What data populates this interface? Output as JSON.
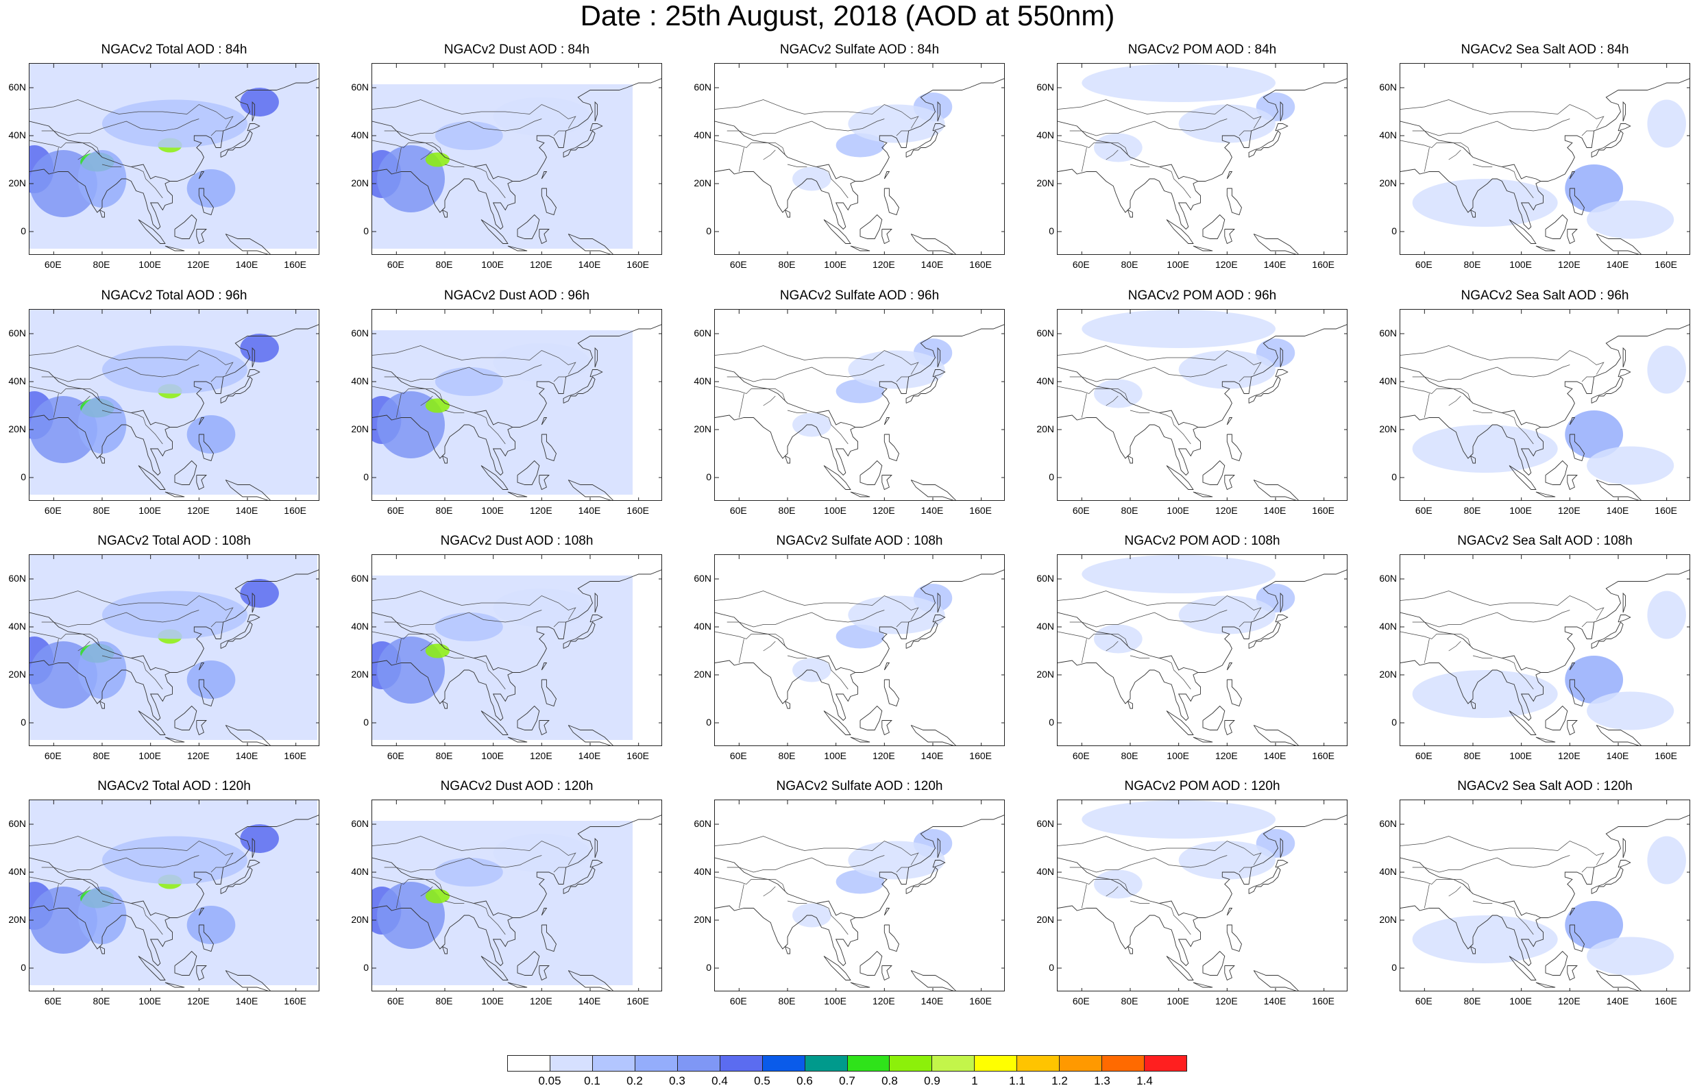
{
  "figure_title": "Date : 25th August, 2018 (AOD at 550nm)",
  "lat_ticks": [
    "60N",
    "40N",
    "20N",
    "0"
  ],
  "lon_ticks": [
    "60E",
    "80E",
    "100E",
    "120E",
    "140E",
    "160E"
  ],
  "panel_rows": [
    [
      "NGACv2 Total AOD : 84h",
      "NGACv2 Dust AOD : 84h",
      "NGACv2 Sulfate AOD : 84h",
      "NGACv2 POM AOD : 84h",
      "NGACv2 Sea Salt AOD : 84h"
    ],
    [
      "NGACv2 Total AOD : 96h",
      "NGACv2 Dust AOD : 96h",
      "NGACv2 Sulfate AOD : 96h",
      "NGACv2 POM AOD : 96h",
      "NGACv2 Sea Salt AOD : 96h"
    ],
    [
      "NGACv2 Total AOD : 108h",
      "NGACv2 Dust AOD : 108h",
      "NGACv2 Sulfate AOD : 108h",
      "NGACv2 POM AOD : 108h",
      "NGACv2 Sea Salt AOD : 108h"
    ],
    [
      "NGACv2 Total AOD : 120h",
      "NGACv2 Dust AOD : 120h",
      "NGACv2 Sulfate AOD : 120h",
      "NGACv2 POM AOD : 120h",
      "NGACv2 Sea Salt  AOD : 120h"
    ]
  ],
  "colorbar": {
    "labels": [
      "0.05",
      "0.1",
      "0.2",
      "0.3",
      "0.4",
      "0.5",
      "0.6",
      "0.7",
      "0.8",
      "0.9",
      "1",
      "1.1",
      "1.2",
      "1.3",
      "1.4"
    ],
    "colors": [
      "#ffffff",
      "#d6e0ff",
      "#b3c6ff",
      "#94adfb",
      "#7f97f5",
      "#5b6cf0",
      "#0a5bea",
      "#009a8c",
      "#2fe31a",
      "#8cf00a",
      "#c3f54a",
      "#ffff00",
      "#ffc400",
      "#ff9900",
      "#ff6a00",
      "#ff1f1f"
    ]
  }
}
